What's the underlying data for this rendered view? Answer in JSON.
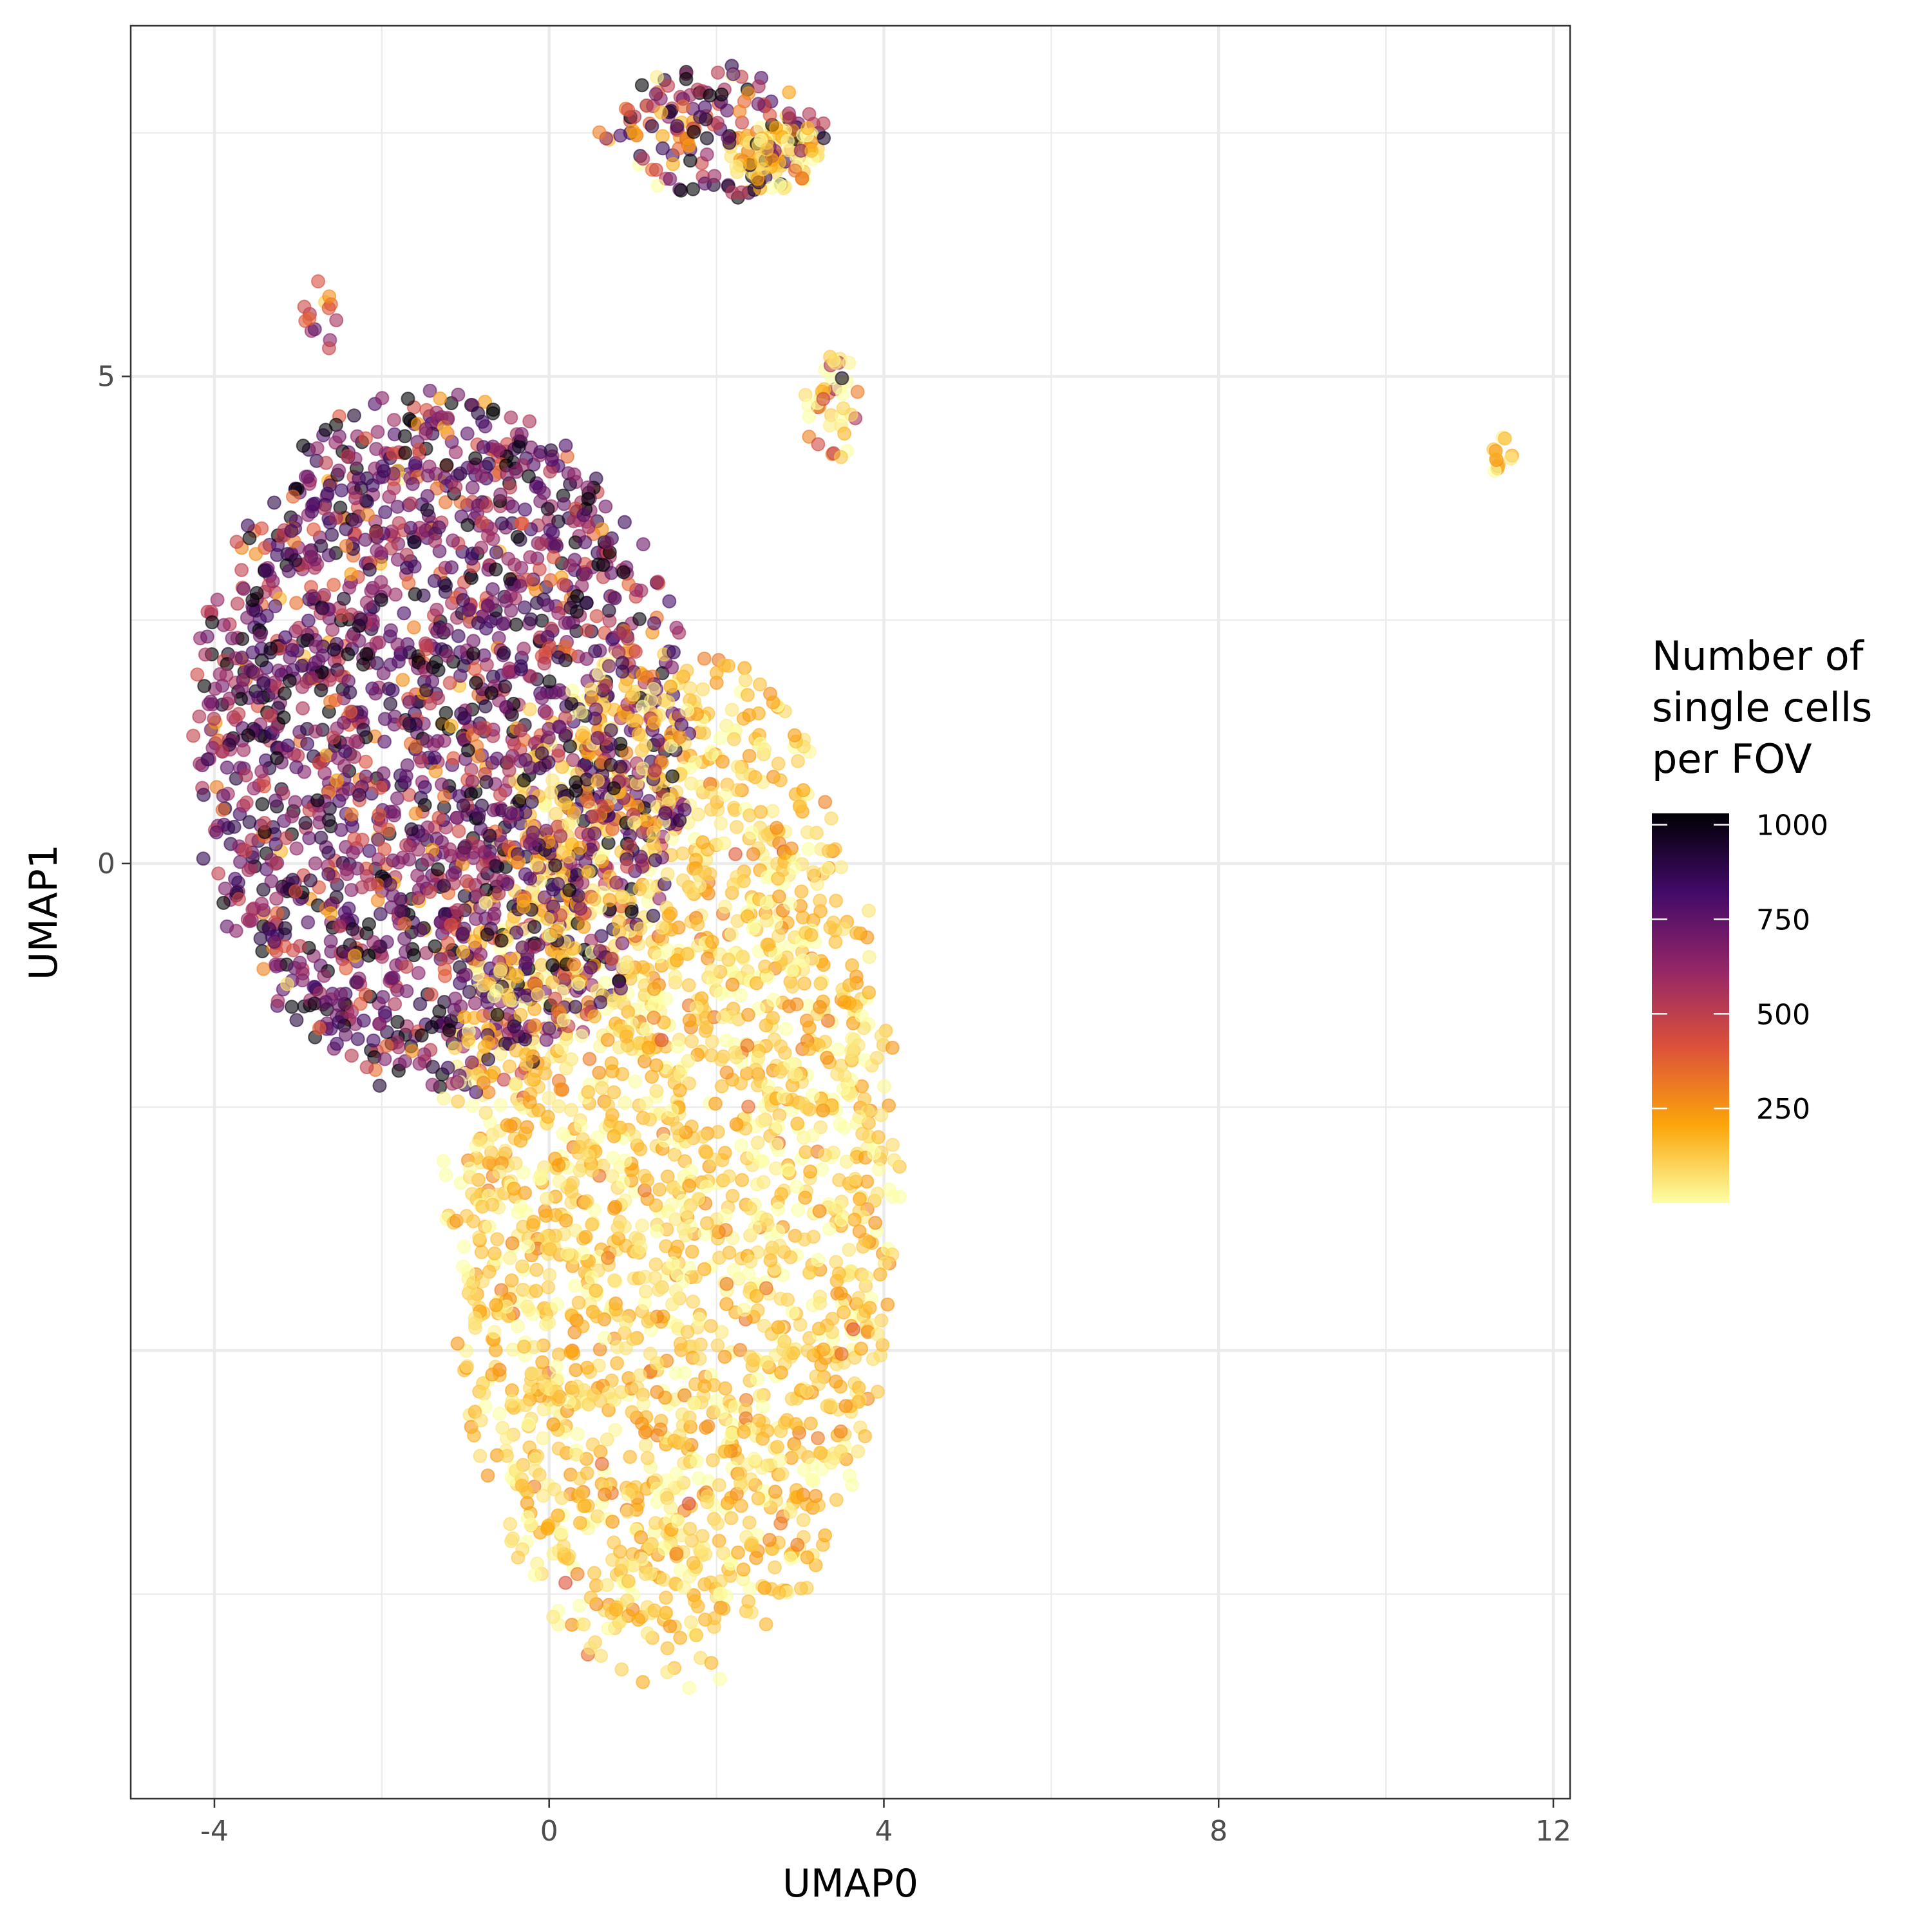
{
  "chart_data": {
    "type": "scatter",
    "xlabel": "UMAP0",
    "ylabel": "UMAP1",
    "xlim": [
      -5,
      12.2
    ],
    "ylim": [
      -9.6,
      8.6
    ],
    "x_ticks": [
      -4,
      0,
      4,
      8,
      12
    ],
    "x_tick_labels": [
      "-4",
      "0",
      "4",
      "8",
      "12"
    ],
    "y_ticks": [
      0,
      5
    ],
    "y_tick_labels": [
      "0",
      "5"
    ],
    "grid": true,
    "legend": {
      "title_lines": [
        "Number of",
        "single cells",
        "per FOV"
      ],
      "placement": "right",
      "min": 0,
      "max": 1000,
      "breaks": [
        250,
        500,
        750,
        1000
      ],
      "break_labels": [
        "250",
        "500",
        "750",
        "1000"
      ],
      "palette": [
        "#fcffa4",
        "#fca50a",
        "#dd513a",
        "#932667",
        "#420a68",
        "#000004"
      ]
    },
    "point_opacity": 0.6,
    "clusters": [
      {
        "id": "upper-left-cluster",
        "x_range": [
          -4.3,
          1.7
        ],
        "y_range": [
          -2.4,
          4.9
        ],
        "value_mean": 700,
        "value_sd": 230,
        "n": 2200
      },
      {
        "id": "lower-right-cluster",
        "x_range": [
          -1.3,
          4.2
        ],
        "y_range": [
          -8.5,
          2.3
        ],
        "value_mean": 110,
        "value_sd": 100,
        "n": 2400
      },
      {
        "id": "top-arch-cluster",
        "x_range": [
          0.6,
          3.3
        ],
        "y_range": [
          6.8,
          8.2
        ],
        "value_mean": 600,
        "value_sd": 300,
        "n": 160
      },
      {
        "id": "top-arch-right-lobe",
        "x_range": [
          2.1,
          3.3
        ],
        "y_range": [
          6.9,
          7.6
        ],
        "value_mean": 120,
        "value_sd": 100,
        "n": 90
      },
      {
        "id": "small-left-cluster",
        "x_range": [
          -3.0,
          -2.5
        ],
        "y_range": [
          5.2,
          6.0
        ],
        "value_mean": 450,
        "value_sd": 150,
        "n": 14
      },
      {
        "id": "mid-small-cluster",
        "x_range": [
          3.0,
          3.7
        ],
        "y_range": [
          4.1,
          5.3
        ],
        "value_mean": 220,
        "value_sd": 250,
        "n": 40
      },
      {
        "id": "far-right-cluster",
        "x_range": [
          11.2,
          11.6
        ],
        "y_range": [
          4.0,
          4.4
        ],
        "value_mean": 250,
        "value_sd": 150,
        "n": 12
      }
    ]
  }
}
